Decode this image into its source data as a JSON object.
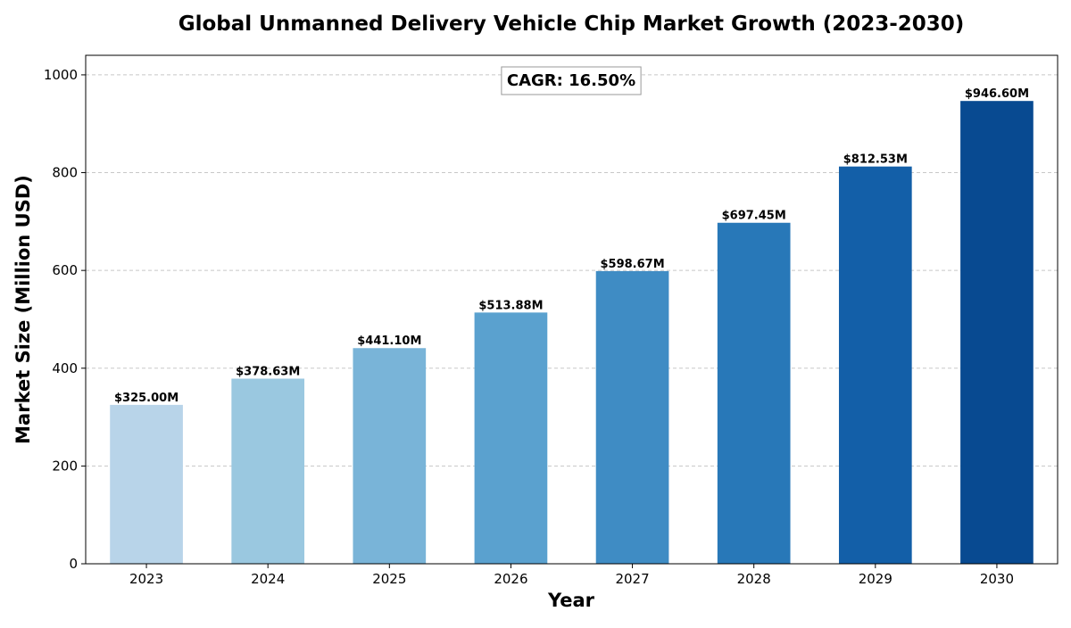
{
  "chart_data": {
    "type": "bar",
    "title": "Global Unmanned Delivery Vehicle Chip Market Growth (2023-2030)",
    "xlabel": "Year",
    "ylabel": "Market Size (Million USD)",
    "categories": [
      "2023",
      "2024",
      "2025",
      "2026",
      "2027",
      "2028",
      "2029",
      "2030"
    ],
    "values": [
      325.0,
      378.63,
      441.1,
      513.88,
      598.67,
      697.45,
      812.53,
      946.6
    ],
    "data_labels": [
      "$325.00M",
      "$378.63M",
      "$441.10M",
      "$513.88M",
      "$598.67M",
      "$697.45M",
      "$812.53M",
      "$946.60M"
    ],
    "ylim": [
      0,
      1040
    ],
    "yticks": [
      0,
      200,
      400,
      600,
      800,
      1000
    ],
    "grid": "horizontal dashed",
    "annotation": "CAGR: 16.50%",
    "bar_colors": [
      "#b8d4e9",
      "#9ac8e0",
      "#79b4d8",
      "#5aa1cf",
      "#3f8cc4",
      "#2878b8",
      "#135fa8",
      "#084a91"
    ],
    "grid_color": "#c8c8c8",
    "axis_color": "#000000"
  }
}
